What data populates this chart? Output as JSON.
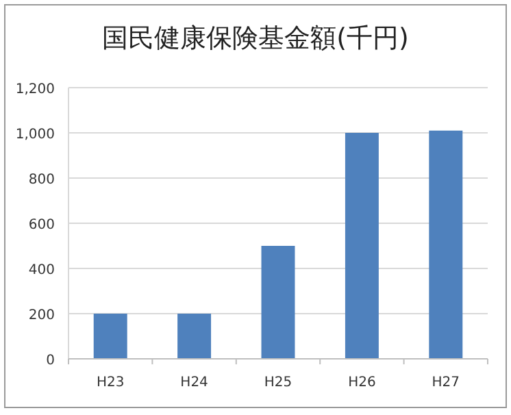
{
  "chart_data": {
    "type": "bar",
    "title": "国民健康保険基金額(千円)",
    "categories": [
      "H23",
      "H24",
      "H25",
      "H26",
      "H27"
    ],
    "values": [
      200,
      200,
      500,
      1000,
      1010
    ],
    "color": "#4f81bd",
    "ylim": [
      0,
      1200
    ],
    "yticks": [
      0,
      200,
      400,
      600,
      800,
      {
        "value": 1000,
        "label": "1,000"
      },
      {
        "value": 1200,
        "label": "1,200"
      }
    ],
    "grid": "y"
  }
}
